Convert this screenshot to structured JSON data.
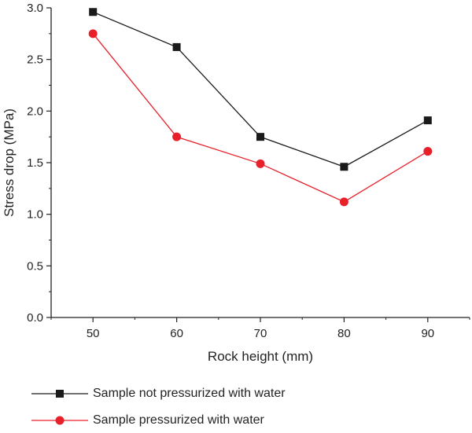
{
  "chart_data": {
    "type": "line",
    "xlabel": "Rock height (mm)",
    "ylabel": "Stress drop (MPa)",
    "x": [
      50,
      60,
      70,
      80,
      90
    ],
    "x_ticks": [
      "50",
      "60",
      "70",
      "80",
      "90"
    ],
    "xlim": [
      45,
      95
    ],
    "ylim": [
      0,
      3.0
    ],
    "y_ticks": [
      "0.0",
      "0.5",
      "1.0",
      "1.5",
      "2.0",
      "2.5",
      "3.0"
    ],
    "y_tick_values": [
      0,
      0.5,
      1.0,
      1.5,
      2.0,
      2.5,
      3.0
    ],
    "grid": false,
    "legend_position": "bottom",
    "series": [
      {
        "name": "Sample not pressurized with water",
        "marker": "square",
        "color": "#1a1a1a",
        "values": [
          2.96,
          2.62,
          1.75,
          1.46,
          1.91
        ]
      },
      {
        "name": "Sample pressurized with water",
        "marker": "circle",
        "color": "#e8202a",
        "values": [
          2.75,
          1.75,
          1.49,
          1.12,
          1.61
        ]
      }
    ]
  }
}
